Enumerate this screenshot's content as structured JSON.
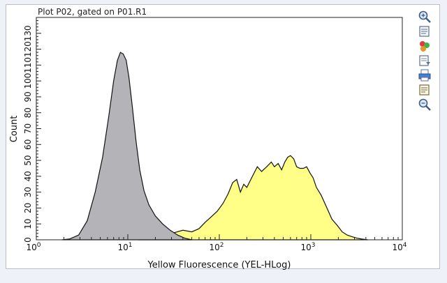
{
  "plot": {
    "title": "Plot P02, gated on P01.R1"
  },
  "toolbar": {
    "items": [
      {
        "icon": "zoom-in-icon"
      },
      {
        "icon": "copy-plot-icon"
      },
      {
        "icon": "color-palette-icon"
      },
      {
        "icon": "properties-icon"
      },
      {
        "icon": "print-icon"
      },
      {
        "icon": "export-icon"
      },
      {
        "icon": "zoom-out-icon"
      }
    ]
  },
  "chart_data": {
    "type": "area",
    "xlabel": "Yellow Fluorescence (YEL-HLog)",
    "ylabel": "Count",
    "x_scale": "log",
    "xlim": [
      1,
      10000
    ],
    "ylim": [
      0,
      140
    ],
    "x_ticks": [
      {
        "base": "10",
        "exp": "0",
        "value": 1
      },
      {
        "base": "10",
        "exp": "1",
        "value": 10
      },
      {
        "base": "10",
        "exp": "2",
        "value": 100
      },
      {
        "base": "10",
        "exp": "3",
        "value": 1000
      },
      {
        "base": "10",
        "exp": "4",
        "value": 10000
      }
    ],
    "y_ticks": [
      "0",
      "10",
      "20",
      "30",
      "40",
      "50",
      "60",
      "70",
      "80",
      "90",
      "100",
      "110",
      "120",
      "130"
    ],
    "grid": false,
    "series": [
      {
        "fill": "#b4b4b8",
        "x": [
          1.9,
          2.3,
          2.9,
          3.6,
          4.4,
          5.3,
          6.2,
          7.0,
          7.7,
          8.3,
          8.9,
          9.6,
          10.3,
          11.2,
          12.3,
          13.5,
          15,
          17,
          20,
          24,
          29,
          35,
          42,
          50
        ],
        "y": [
          0,
          0.5,
          3,
          12,
          30,
          52,
          78,
          100,
          113,
          118,
          117,
          113,
          102,
          84,
          62,
          44,
          31,
          22,
          15,
          10,
          6,
          3,
          1,
          0
        ]
      },
      {
        "fill": "#ffff88",
        "x": [
          13,
          20,
          30,
          40,
          50,
          60,
          70,
          80,
          95,
          110,
          125,
          140,
          155,
          170,
          185,
          200,
          230,
          260,
          290,
          330,
          370,
          400,
          440,
          480,
          520,
          560,
          600,
          650,
          700,
          760,
          830,
          900,
          980,
          1060,
          1150,
          1300,
          1500,
          1700,
          1950,
          2200,
          2500,
          2800,
          3200,
          3600,
          4200
        ],
        "y": [
          0,
          2,
          4,
          6,
          5,
          7,
          11,
          14,
          18,
          23,
          29,
          36,
          38,
          30,
          35,
          33,
          40,
          46,
          43,
          46,
          49,
          46,
          48,
          44,
          49,
          52,
          53,
          51,
          46,
          45,
          45,
          46,
          42,
          39,
          33,
          28,
          20,
          13,
          9,
          5,
          3,
          2,
          1,
          0.5,
          0
        ]
      }
    ]
  }
}
